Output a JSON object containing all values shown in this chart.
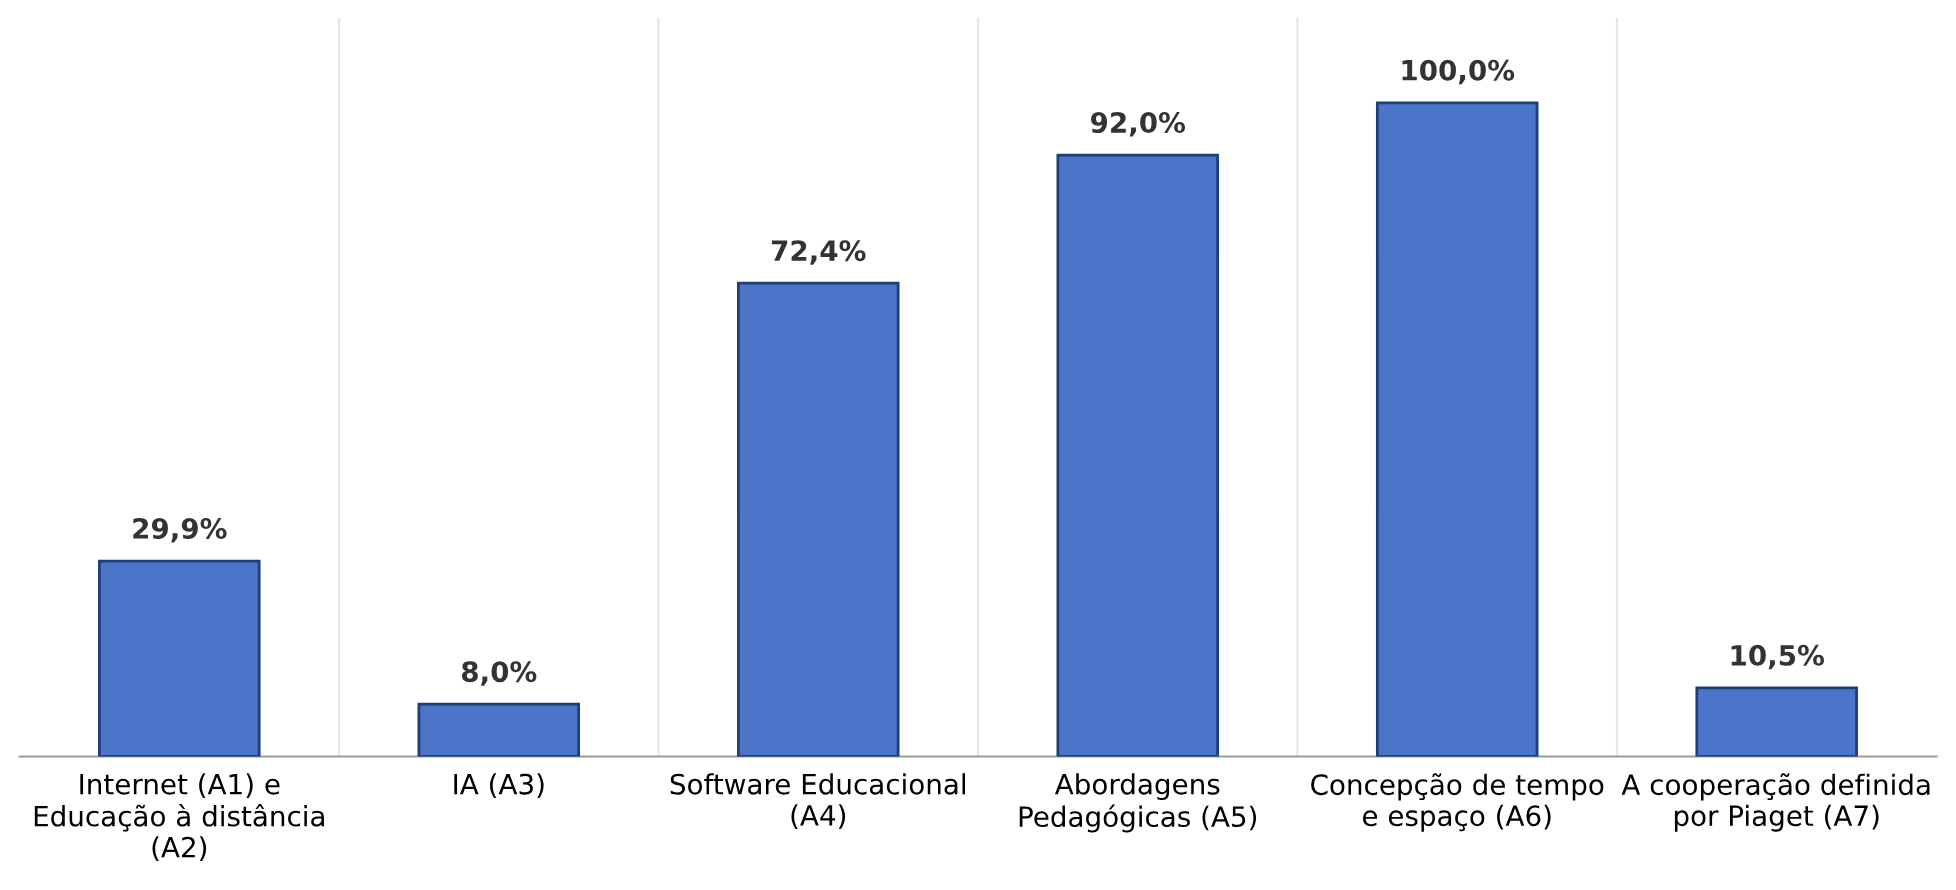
{
  "chart_data": {
    "type": "bar",
    "categories": [
      "Internet (A1) e\nEducação à distância\n(A2)",
      "IA (A3)",
      "Software Educacional\n(A4)",
      "Abordagens\nPedagógicas (A5)",
      "Concepção de tempo\ne espaço (A6)",
      "A cooperação definida\npor Piaget (A7)"
    ],
    "values": [
      29.9,
      8.0,
      72.4,
      92.0,
      100.0,
      10.5
    ],
    "value_labels": [
      "29,9%",
      "8,0%",
      "72,4%",
      "92,0%",
      "100,0%",
      "10,5%"
    ],
    "color": "#4a75c9",
    "grid": "x"
  }
}
